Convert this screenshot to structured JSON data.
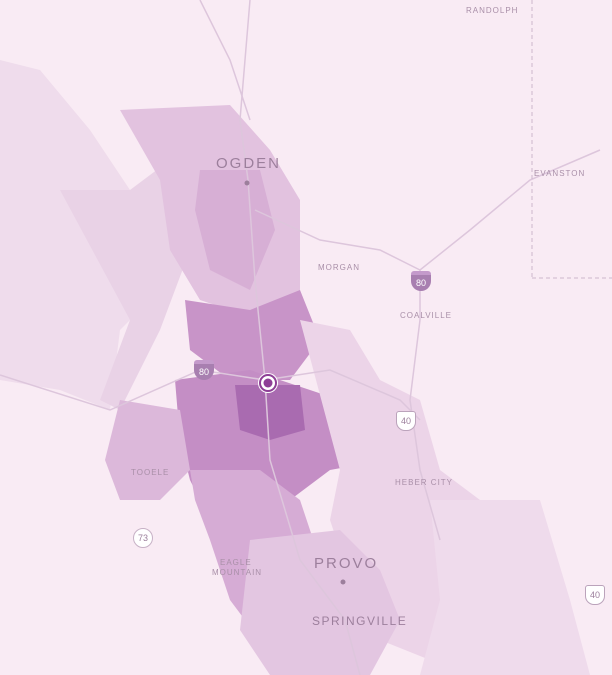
{
  "colors": {
    "background": "#f9ebf4",
    "light": "#ecd4e8",
    "medium": "#d7afd5",
    "dark": "#bc85bf",
    "darkest": "#9c5aa6",
    "marker": "#8e3f96"
  },
  "labels": {
    "ogden": "OGDEN",
    "morgan": "MORGAN",
    "coalville": "COALVILLE",
    "randolph": "RANDOLPH",
    "evanston": "EVANSTON",
    "tooele": "TOOELE",
    "heber_city": "HEBER CITY",
    "eagle_mountain_1": "EAGLE",
    "eagle_mountain_2": "MOUNTAIN",
    "provo": "PROVO",
    "springville": "SPRINGVILLE"
  },
  "shields": {
    "i80_west": "80",
    "i80_east": "80",
    "us40_north": "40",
    "us40_east": "40",
    "sr73": "73"
  },
  "marker": {
    "icon": "location-marker-icon"
  }
}
